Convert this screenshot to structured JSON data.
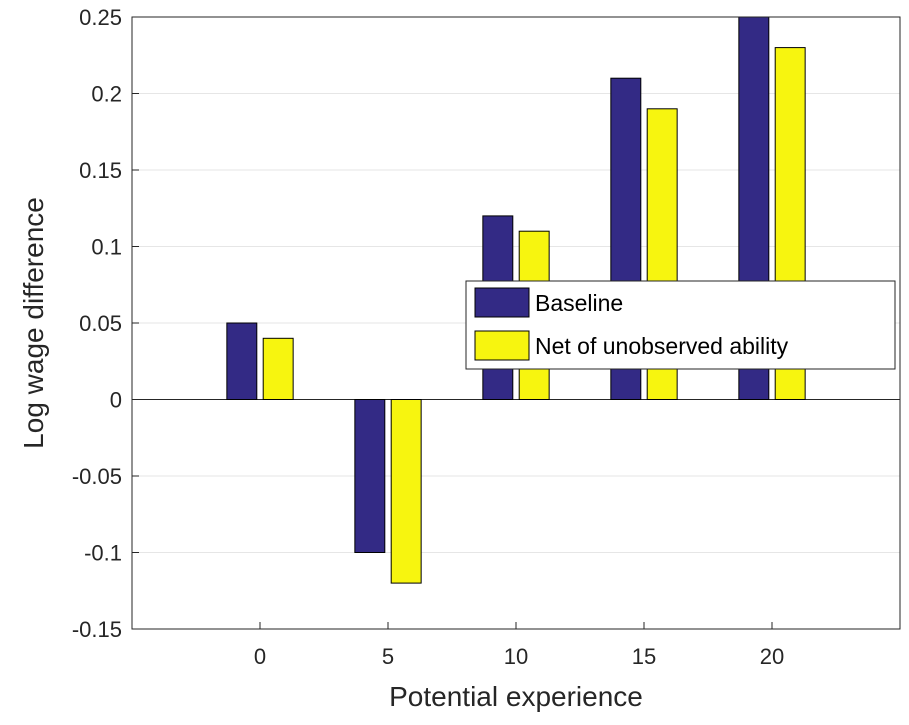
{
  "chart_data": {
    "type": "bar",
    "title": "",
    "xlabel": "Potential experience",
    "ylabel": "Log wage difference",
    "categories": [
      "0",
      "5",
      "10",
      "15",
      "20"
    ],
    "x_values": [
      0,
      5,
      10,
      15,
      20
    ],
    "xlim": [
      -5,
      25
    ],
    "ylim": [
      -0.15,
      0.25
    ],
    "yticks": [
      "-0.15",
      "-0.1",
      "-0.05",
      "0",
      "0.05",
      "0.1",
      "0.15",
      "0.2",
      "0.25"
    ],
    "ytick_values": [
      -0.15,
      -0.1,
      -0.05,
      0,
      0.05,
      0.1,
      0.15,
      0.2,
      0.25
    ],
    "grid": "horizontal",
    "legend_position": "right",
    "series": [
      {
        "name": "Baseline",
        "color": "#332a85",
        "values": [
          0.05,
          -0.1,
          0.12,
          0.21,
          0.25
        ]
      },
      {
        "name": "Net of unobserved ability",
        "color": "#f7f50f",
        "values": [
          0.04,
          -0.12,
          0.11,
          0.19,
          0.23
        ]
      }
    ]
  }
}
